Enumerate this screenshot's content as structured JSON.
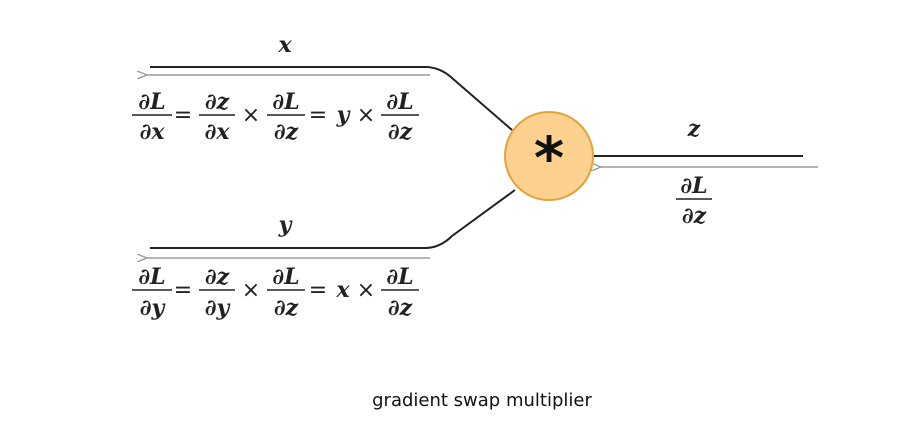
{
  "node": {
    "symbol": "*",
    "fill": "#fcd08f",
    "stroke": "#e0a43a"
  },
  "labels": {
    "x": "x",
    "y": "y",
    "z": "z"
  },
  "upstream_gradient": {
    "num": "∂L",
    "den": "∂z"
  },
  "x_gradient": {
    "lhs": {
      "num": "∂L",
      "den": "∂x"
    },
    "local": {
      "num": "∂z",
      "den": "∂x"
    },
    "upstream": {
      "num": "∂L",
      "den": "∂z"
    },
    "swap_var": "y",
    "upstream2": {
      "num": "∂L",
      "den": "∂z"
    }
  },
  "y_gradient": {
    "lhs": {
      "num": "∂L",
      "den": "∂y"
    },
    "local": {
      "num": "∂z",
      "den": "∂y"
    },
    "upstream": {
      "num": "∂L",
      "den": "∂z"
    },
    "swap_var": "x",
    "upstream2": {
      "num": "∂L",
      "den": "∂z"
    }
  },
  "symbols": {
    "equals": "=",
    "times": "×"
  },
  "caption": "gradient swap multiplier",
  "colors": {
    "wire": "#222222",
    "arrow": "#9a9a9a"
  }
}
